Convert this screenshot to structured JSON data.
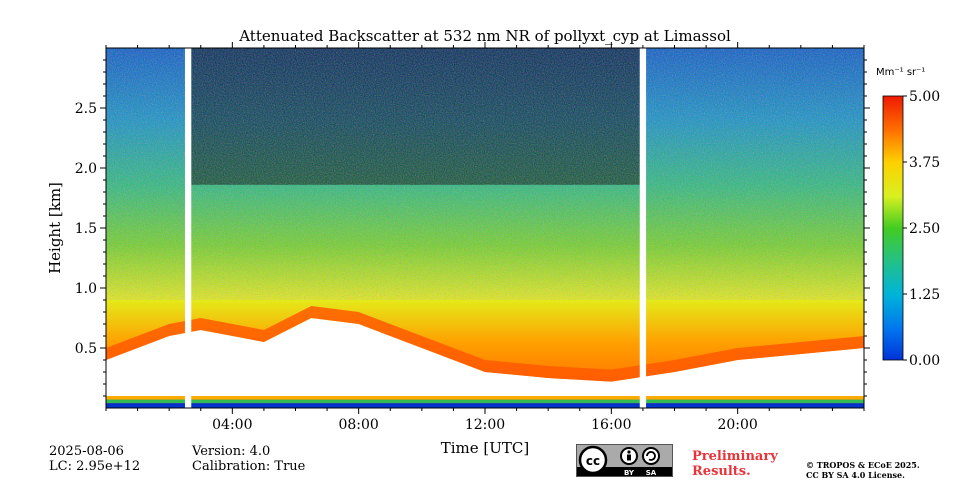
{
  "chart_data": {
    "type": "heatmap",
    "title": "Attenuated Backscatter at 532 nm NR of pollyxt_cyp at Limassol",
    "xlabel": "Time [UTC]",
    "ylabel": "Height [km]",
    "x_range_hours": [
      0,
      24
    ],
    "y_range_km": [
      0.0,
      3.0
    ],
    "x_ticks": [
      {
        "value": 4,
        "label": "04:00"
      },
      {
        "value": 8,
        "label": "08:00"
      },
      {
        "value": 12,
        "label": "12:00"
      },
      {
        "value": 16,
        "label": "16:00"
      },
      {
        "value": 20,
        "label": "20:00"
      }
    ],
    "y_ticks": [
      {
        "value": 0.5,
        "label": "0.5"
      },
      {
        "value": 1.0,
        "label": "1.0"
      },
      {
        "value": 1.5,
        "label": "1.5"
      },
      {
        "value": 2.0,
        "label": "2.0"
      },
      {
        "value": 2.5,
        "label": "2.5"
      }
    ],
    "colorbar": {
      "label": "Mm⁻¹ sr⁻¹",
      "range": [
        0.0,
        5.0
      ],
      "ticks": [
        {
          "value": 0.0,
          "label": "0.00"
        },
        {
          "value": 1.25,
          "label": "1.25"
        },
        {
          "value": 2.5,
          "label": "2.50"
        },
        {
          "value": 3.75,
          "label": "3.75"
        },
        {
          "value": 5.0,
          "label": "5.00"
        }
      ],
      "colormap": "jet"
    },
    "data_gaps_hours": [
      [
        2.5,
        2.7
      ],
      [
        16.9,
        17.1
      ]
    ],
    "boundary_layer_top_km": [
      {
        "t": 0,
        "h": 0.4
      },
      {
        "t": 2,
        "h": 0.6
      },
      {
        "t": 3,
        "h": 0.65
      },
      {
        "t": 5,
        "h": 0.55
      },
      {
        "t": 6.5,
        "h": 0.75
      },
      {
        "t": 8,
        "h": 0.7
      },
      {
        "t": 10,
        "h": 0.5
      },
      {
        "t": 12,
        "h": 0.3
      },
      {
        "t": 14,
        "h": 0.25
      },
      {
        "t": 16,
        "h": 0.22
      },
      {
        "t": 18,
        "h": 0.3
      },
      {
        "t": 20,
        "h": 0.4
      },
      {
        "t": 24,
        "h": 0.5
      }
    ]
  },
  "footer": {
    "date": "2025-08-06",
    "lc": "LC: 2.95e+12",
    "version": "Version: 4.0",
    "calibration": "Calibration: True",
    "preliminary_line1": "Preliminary",
    "preliminary_line2": "Results.",
    "copyright_line1": "© TROPOS & ECoE 2025.",
    "copyright_line2": "CC BY SA 4.0 License.",
    "cc_by": "BY",
    "cc_sa": "SA",
    "cc_mark": "cc"
  }
}
